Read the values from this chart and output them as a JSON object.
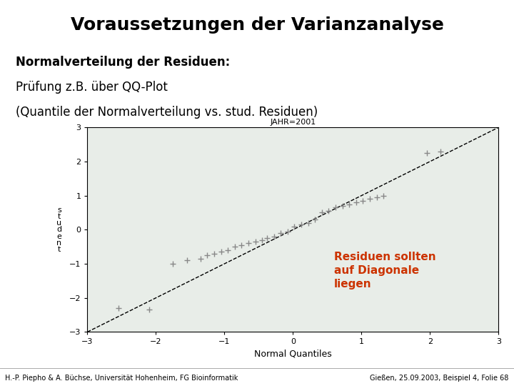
{
  "title": "Voraussetzungen der Varianzanalyse",
  "title_bg": "#FFFF00",
  "title_fontsize": 18,
  "title_color": "#000000",
  "text_line1": "Normalverteilung der Residuen:",
  "text_line2": "Prüfung z.B. über QQ-Plot",
  "text_line3": "(Quantile der Normalverteilung vs. stud. Residuen)",
  "annotation_text": "Residuen sollten\nauf Diagonale\nliegen",
  "annotation_color": "#CC3300",
  "plot_title": "JAHR=2001",
  "xlabel": "Normal Quantiles",
  "ylabel": "s\nt\nu\nd\ne\nn\nt",
  "footer_left": "H.-P. Piepho & A. Büchse, Universität Hohenheim, FG Bioinformatik",
  "footer_right": "Gießen, 25.09.2003, Beispiel 4, Folie 68",
  "bg_color": "#FFFFFF",
  "qq_points_x": [
    -2.55,
    -2.1,
    -1.75,
    -1.55,
    -1.35,
    -1.25,
    -1.15,
    -1.05,
    -0.95,
    -0.85,
    -0.75,
    -0.65,
    -0.55,
    -0.45,
    -0.38,
    -0.28,
    -0.18,
    -0.08,
    0.02,
    0.12,
    0.22,
    0.32,
    0.42,
    0.52,
    0.62,
    0.72,
    0.82,
    0.92,
    1.02,
    1.12,
    1.22,
    1.32,
    1.95,
    2.15
  ],
  "qq_points_y": [
    -2.3,
    -2.35,
    -1.0,
    -0.9,
    -0.85,
    -0.75,
    -0.7,
    -0.65,
    -0.6,
    -0.5,
    -0.45,
    -0.4,
    -0.35,
    -0.3,
    -0.25,
    -0.2,
    -0.1,
    -0.05,
    0.1,
    0.15,
    0.2,
    0.3,
    0.5,
    0.55,
    0.65,
    0.7,
    0.75,
    0.8,
    0.85,
    0.9,
    0.95,
    1.0,
    2.25,
    2.3
  ],
  "line_x": [
    -3,
    3
  ],
  "line_y": [
    -3,
    3
  ],
  "xlim": [
    -3,
    3
  ],
  "ylim": [
    -3,
    3
  ],
  "xticks": [
    -3,
    -2,
    -1,
    0,
    1,
    2,
    3
  ],
  "yticks": [
    -3,
    -2,
    -1,
    0,
    1,
    2,
    3
  ],
  "plot_bg": "#E8EDE8",
  "marker_color": "#888888",
  "line_color": "#000000",
  "line_style": "--"
}
